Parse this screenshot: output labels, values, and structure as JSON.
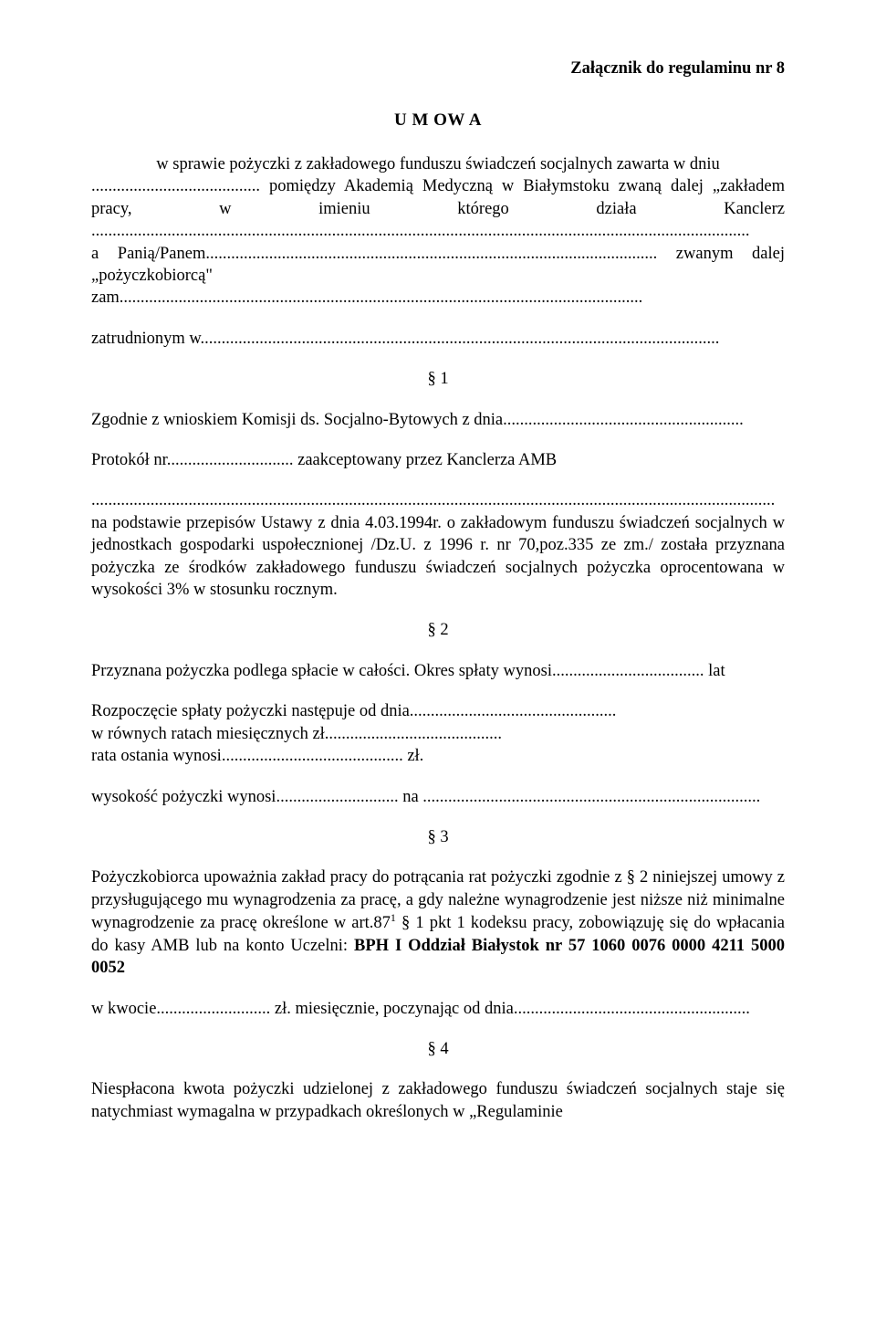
{
  "header": {
    "attachment": "Załącznik do regulaminu nr 8"
  },
  "title": "U M OW A",
  "subtitle": "w sprawie pożyczki z zakładowego funduszu świadczeń socjalnych zawarta w dniu",
  "intro": {
    "line1": "........................................ pomiędzy Akademią Medyczną w Białymstoku zwaną dalej „zakładem pracy, w imieniu którego działa Kanclerz ............................................................................................................................................................",
    "line2": "a Panią/Panem........................................................................................................... zwanym dalej „pożyczkobiorcą\"",
    "line3": "zam............................................................................................................................",
    "line4": "zatrudnionym w..........................................................................................................................."
  },
  "s1": {
    "mark": "§ 1",
    "l1": "Zgodnie z wnioskiem Komisji ds. Socjalno-Bytowych z dnia.........................................................",
    "l2": "Protokół nr.............................. zaakceptowany przez  Kanclerza  AMB",
    "l3": "..................................................................................................................................................................",
    "l4a": "na podstawie przepisów Ustawy z dnia  4.03.1994r. o zakładowym funduszu świadczeń socjalnych w jednostkach gospodarki uspołecznionej /Dz.U. z 1996 r. nr 70,poz.335 ze zm./ została przyznana pożyczka ze środków zakładowego funduszu świadczeń socjalnych pożyczka oprocentowana w wysokości 3% w stosunku rocznym."
  },
  "s2": {
    "mark": "§ 2",
    "l1": "Przyznana pożyczka podlega spłacie w całości. Okres spłaty wynosi.................................... lat",
    "l2": "Rozpoczęcie spłaty pożyczki następuje od dnia.................................................",
    "l3": "w równych ratach miesięcznych zł..........................................",
    "l4": "rata ostania wynosi........................................... zł.",
    "l5": "wysokość pożyczki wynosi............................. na ................................................................................"
  },
  "s3": {
    "mark": "§ 3",
    "para_pre": "Pożyczkobiorca upoważnia zakład pracy do potrącania rat pożyczki zgodnie z § 2 niniejszej umowy z przysługującego mu wynagrodzenia za pracę, a gdy należne wynagrodzenie jest niższe niż minimalne wynagrodzenie za pracę określone w art.87",
    "sup": "1",
    "para_post": " § 1 pkt 1 kodeksu pracy, zobowiązuję się do wpłacania do kasy AMB lub na konto Uczelni:",
    "bold": "BPH  I Oddział Białystok nr 57 1060 0076 0000 4211 5000 0052",
    "l2": " w kwocie........................... zł. miesięcznie, poczynając od dnia........................................................"
  },
  "s4": {
    "mark": "§ 4",
    "l1": "Niespłacona kwota pożyczki udzielonej z zakładowego funduszu świadczeń socjalnych staje się natychmiast wymagalna w przypadkach określonych w „Regulaminie"
  }
}
